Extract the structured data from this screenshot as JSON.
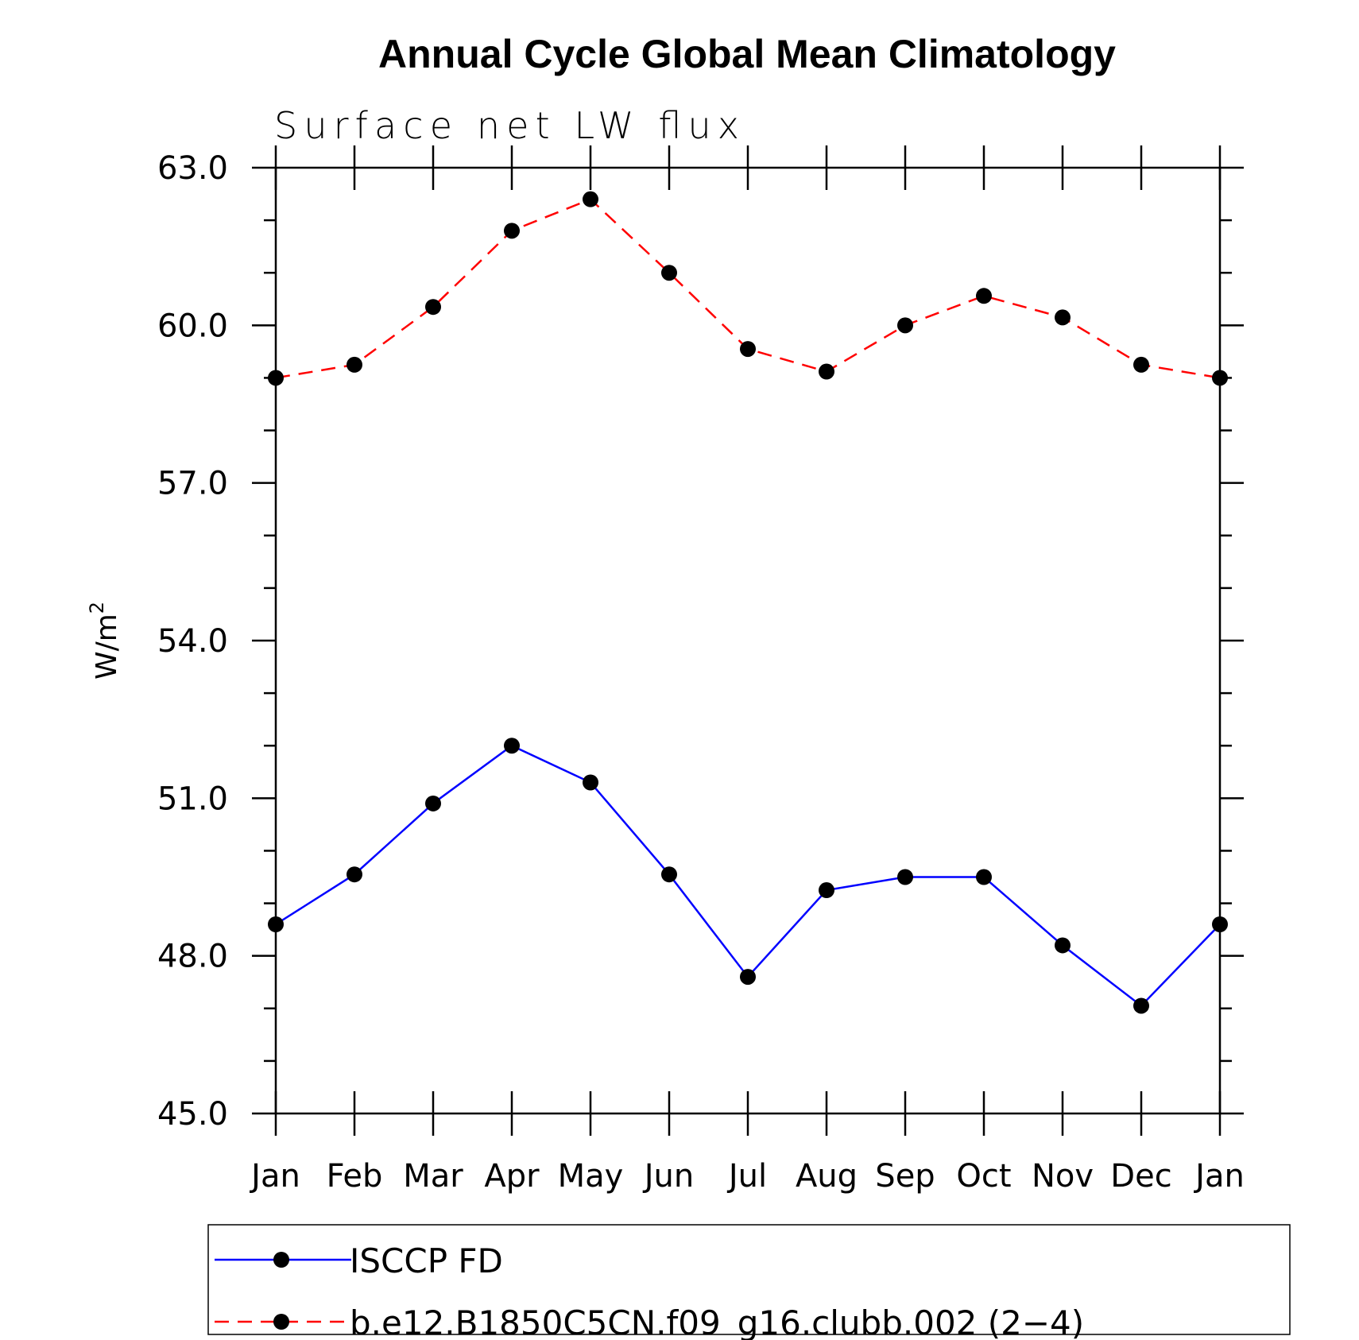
{
  "chart_data": {
    "type": "line",
    "title": "Annual Cycle Global Mean Climatology",
    "subtitle": "Surface net LW flux",
    "xlabel": "",
    "ylabel": "W/m",
    "ylabel_superscript": "2",
    "categories": [
      "Jan",
      "Feb",
      "Mar",
      "Apr",
      "May",
      "Jun",
      "Jul",
      "Aug",
      "Sep",
      "Oct",
      "Nov",
      "Dec",
      "Jan"
    ],
    "ylim": [
      45,
      63
    ],
    "yticks": [
      "45.0",
      "48.0",
      "51.0",
      "54.0",
      "57.0",
      "60.0",
      "63.0"
    ],
    "grid": false,
    "legend_position": "bottom",
    "series": [
      {
        "name": "ISCCP FD",
        "color": "#0000ff",
        "dashed": false,
        "marker": "circle",
        "values": [
          48.6,
          49.55,
          50.9,
          52.0,
          51.3,
          49.55,
          47.6,
          49.25,
          49.5,
          49.5,
          48.2,
          47.05,
          48.6
        ]
      },
      {
        "name": "b.e12.B1850C5CN.f09_g16.clubb.002 (2−4)",
        "color": "#ff0000",
        "dashed": true,
        "marker": "circle",
        "values": [
          59.0,
          59.25,
          60.35,
          61.8,
          62.4,
          61.0,
          59.55,
          59.12,
          60.0,
          60.56,
          60.15,
          59.25,
          59.0
        ]
      }
    ]
  }
}
